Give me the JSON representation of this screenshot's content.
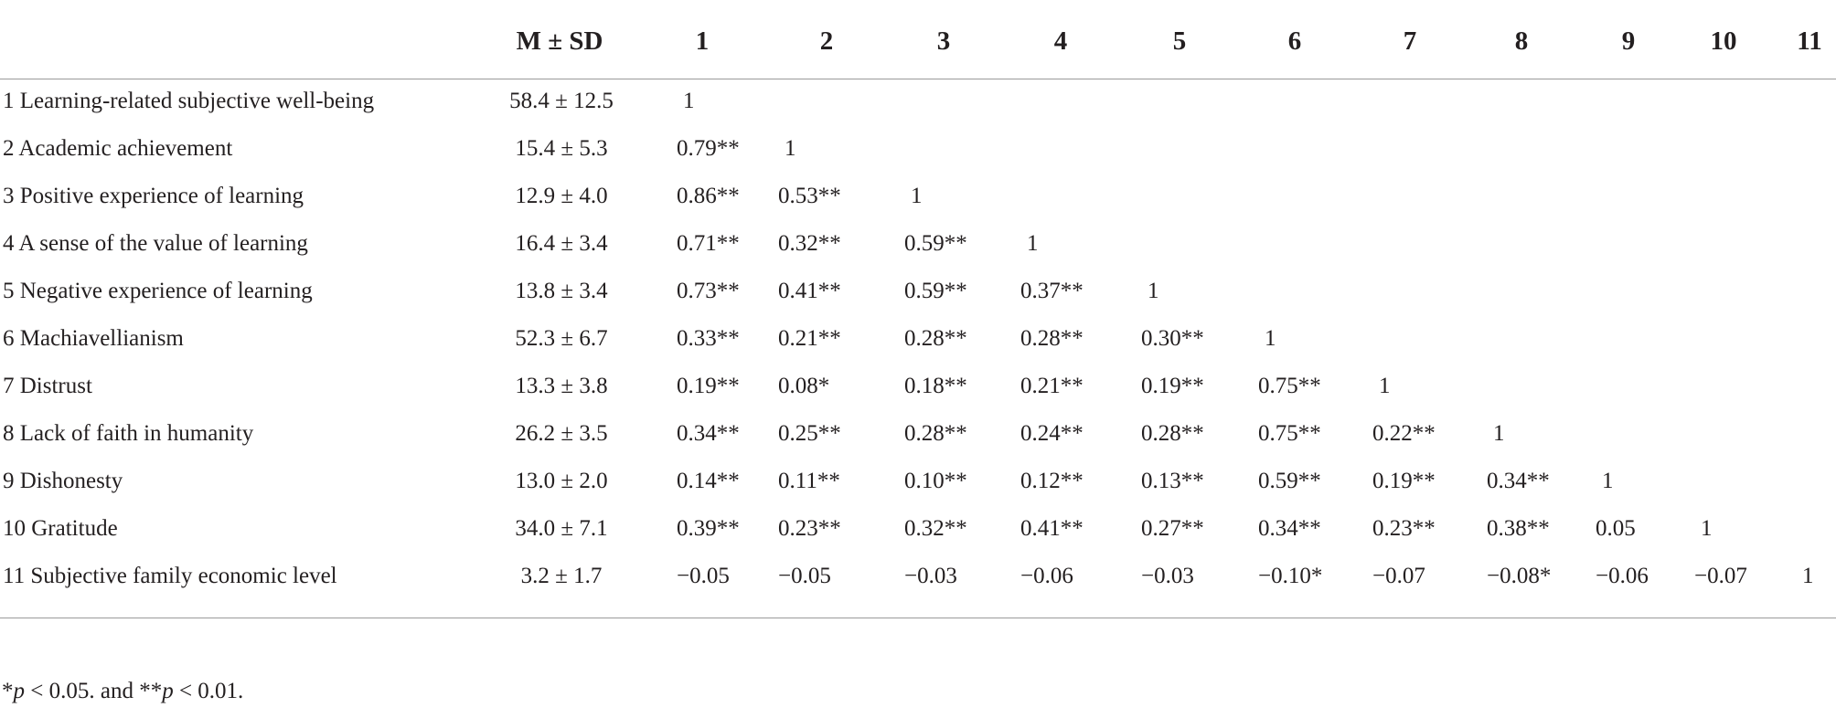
{
  "table": {
    "columns": [
      "M ± SD",
      "1",
      "2",
      "3",
      "4",
      "5",
      "6",
      "7",
      "8",
      "9",
      "10",
      "11"
    ],
    "rows": [
      {
        "label": "1 Learning-related subjective well-being",
        "msd": "58.4 ± 12.5",
        "cells": [
          "1"
        ]
      },
      {
        "label": "2 Academic achievement",
        "msd": "15.4 ± 5.3",
        "cells": [
          "0.79**",
          "1"
        ]
      },
      {
        "label": "3 Positive experience of learning",
        "msd": "12.9 ± 4.0",
        "cells": [
          "0.86**",
          "0.53**",
          "1"
        ]
      },
      {
        "label": "4 A sense of the value of learning",
        "msd": "16.4 ± 3.4",
        "cells": [
          "0.71**",
          "0.32**",
          "0.59**",
          "1"
        ]
      },
      {
        "label": "5 Negative experience of learning",
        "msd": "13.8 ± 3.4",
        "cells": [
          "0.73**",
          "0.41**",
          "0.59**",
          "0.37**",
          "1"
        ]
      },
      {
        "label": "6 Machiavellianism",
        "msd": "52.3 ± 6.7",
        "cells": [
          "0.33**",
          "0.21**",
          "0.28**",
          "0.28**",
          "0.30**",
          "1"
        ]
      },
      {
        "label": "7 Distrust",
        "msd": "13.3 ± 3.8",
        "cells": [
          "0.19**",
          "0.08*",
          "0.18**",
          "0.21**",
          "0.19**",
          "0.75**",
          "1"
        ]
      },
      {
        "label": "8 Lack of faith in humanity",
        "msd": "26.2 ± 3.5",
        "cells": [
          "0.34**",
          "0.25**",
          "0.28**",
          "0.24**",
          "0.28**",
          "0.75**",
          "0.22**",
          "1"
        ]
      },
      {
        "label": "9 Dishonesty",
        "msd": "13.0 ± 2.0",
        "cells": [
          "0.14**",
          "0.11**",
          "0.10**",
          "0.12**",
          "0.13**",
          "0.59**",
          "0.19**",
          "0.34**",
          "1"
        ]
      },
      {
        "label": "10 Gratitude",
        "msd": "34.0 ± 7.1",
        "cells": [
          "0.39**",
          "0.23**",
          "0.32**",
          "0.41**",
          "0.27**",
          "0.34**",
          "0.23**",
          "0.38**",
          "0.05",
          "1"
        ]
      },
      {
        "label": "11 Subjective family economic level",
        "msd": "3.2 ± 1.7",
        "cells": [
          "−0.05",
          "−0.05",
          "−0.03",
          "−0.06",
          "−0.03",
          "−0.10*",
          "−0.07",
          "−0.08*",
          "−0.06",
          "−0.07",
          "1"
        ]
      }
    ],
    "footnote": [
      "*",
      "p",
      " < 0.05. and **",
      "p",
      " < 0.01."
    ]
  }
}
